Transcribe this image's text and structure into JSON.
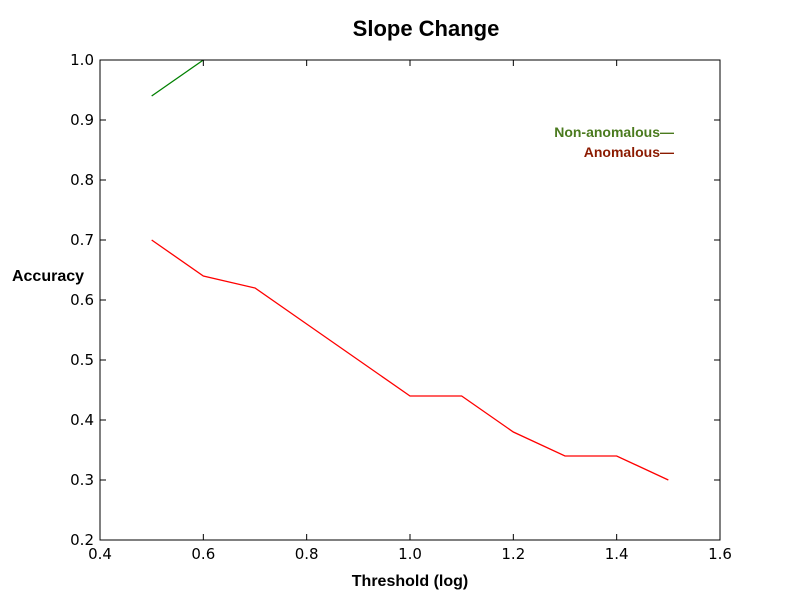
{
  "chart_data": {
    "type": "line",
    "title": "Slope Change",
    "xlabel": "Threshold (log)",
    "ylabel": "Accuracy",
    "xlim": [
      0.4,
      1.6
    ],
    "ylim": [
      0.2,
      1.0
    ],
    "xticks": [
      "0.4",
      "0.6",
      "0.8",
      "1.0",
      "1.2",
      "1.4",
      "1.6"
    ],
    "yticks": [
      "0.2",
      "0.3",
      "0.4",
      "0.5",
      "0.6",
      "0.7",
      "0.8",
      "0.9",
      "1.0"
    ],
    "grid": false,
    "legend_position": "top-right",
    "legend": [
      {
        "label": "Non-anomalous—",
        "color": "#4a7a1e"
      },
      {
        "label": "Anomalous—",
        "color": "#8b1a00"
      }
    ],
    "series": [
      {
        "color": "#008000",
        "x": [
          0.5,
          0.6
        ],
        "y": [
          0.94,
          1.0
        ]
      },
      {
        "color": "#ff0000",
        "x": [
          0.5,
          0.6,
          0.7,
          0.8,
          0.9,
          1.0,
          1.1,
          1.2,
          1.3,
          1.4,
          1.5
        ],
        "y": [
          0.7,
          0.64,
          0.62,
          0.56,
          0.5,
          0.44,
          0.44,
          0.38,
          0.34,
          0.34,
          0.3
        ]
      }
    ]
  }
}
